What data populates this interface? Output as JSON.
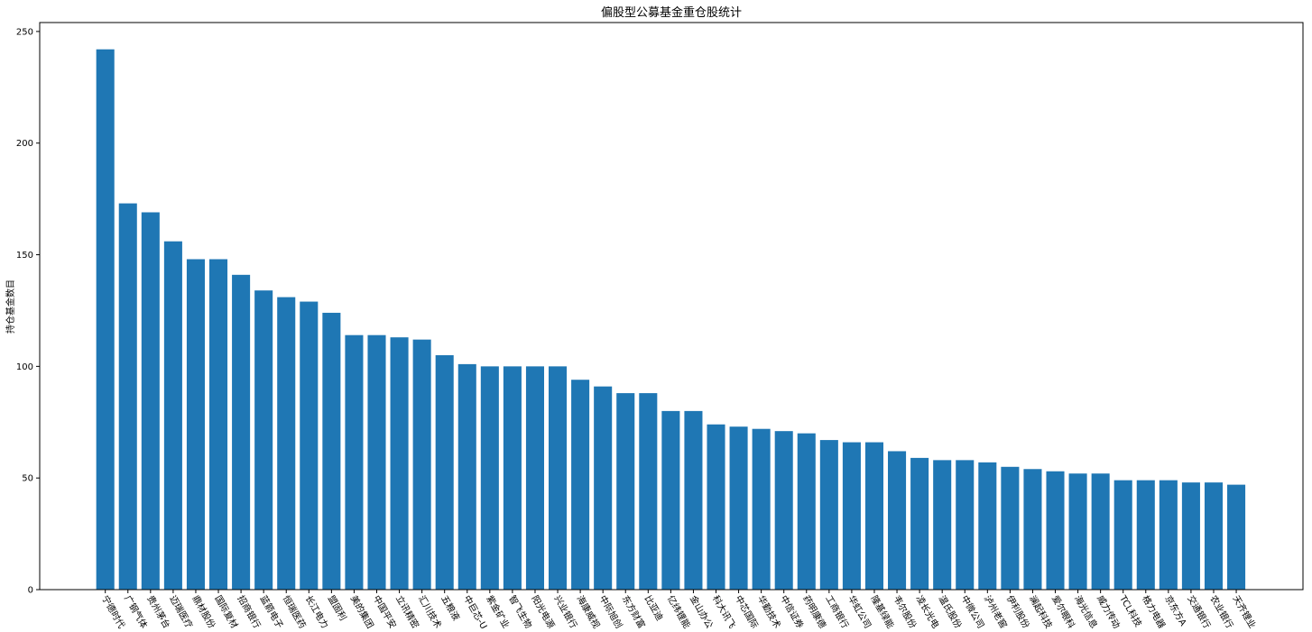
{
  "chart_data": {
    "type": "bar",
    "title": "偏股型公募基金重仓股统计",
    "xlabel": "",
    "ylabel": "持仓基金数目",
    "ylim": [
      0,
      254
    ],
    "yticks": [
      0,
      50,
      100,
      150,
      200,
      250
    ],
    "grid": false,
    "bar_color": "#1f77b4",
    "categories": [
      "宁德时代",
      "广钢气体",
      "贵州茅台",
      "迈瑞医疗",
      "鼎材股份",
      "国际复材",
      "招商银行",
      "蓝箭电子",
      "恒瑞医药",
      "长江电力",
      "盟固利",
      "美的集团",
      "中国平安",
      "立讯精密",
      "汇川技术",
      "五粮液",
      "中巨芯-U",
      "紫金矿业",
      "智飞生物",
      "阳光电源",
      "兴业银行",
      "海康威视",
      "中际旭创",
      "东方财富",
      "比亚迪",
      "亿纬锂能",
      "金山办公",
      "科大讯飞",
      "中芯国际",
      "华勤技术",
      "中信证券",
      "药明康德",
      "工商银行",
      "华虹公司",
      "隆基绿能",
      "韦尔股份",
      "凌长光电",
      "温氏股份",
      "中微公司",
      "泸州老窖",
      "伊利股份",
      "澜起科技",
      "爱尔眼科",
      "海光信息",
      "威力传动",
      "TCL科技",
      "格力电器",
      "京东方A",
      "交通银行",
      "农业银行",
      "天齐锂业"
    ],
    "values": [
      242,
      173,
      169,
      156,
      148,
      148,
      141,
      134,
      131,
      129,
      124,
      114,
      114,
      113,
      112,
      105,
      101,
      100,
      100,
      100,
      100,
      94,
      91,
      88,
      88,
      80,
      80,
      74,
      73,
      72,
      71,
      70,
      67,
      66,
      66,
      62,
      59,
      58,
      58,
      57,
      55,
      54,
      53,
      52,
      52,
      49,
      49,
      49,
      48,
      48,
      47
    ]
  }
}
